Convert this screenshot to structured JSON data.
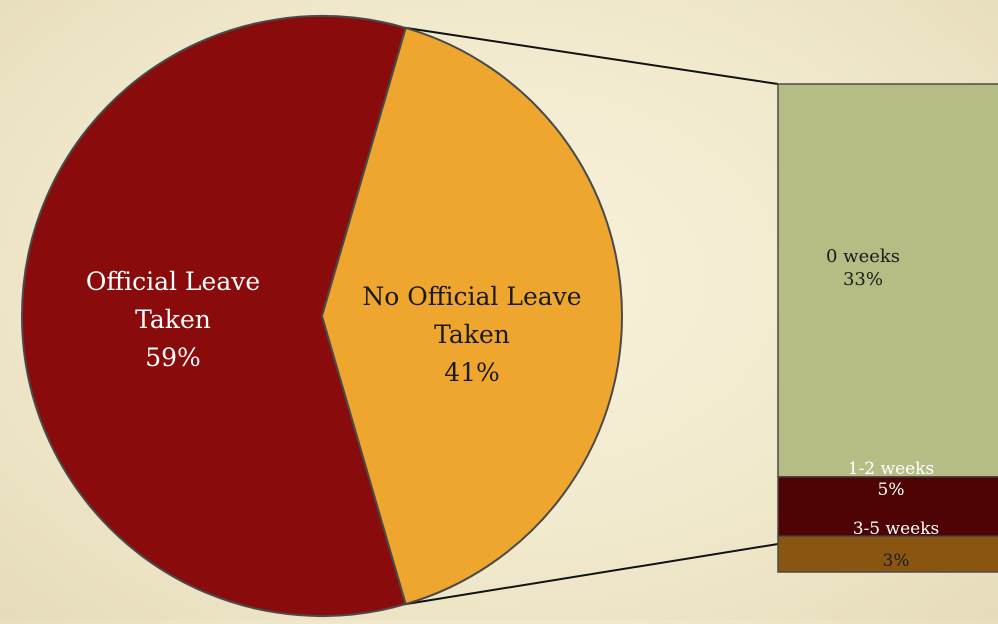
{
  "chart_data": {
    "type": "bar-of-pie",
    "pie": {
      "slices": [
        {
          "label": [
            "Official Leave",
            "Taken"
          ],
          "percent_label": "59%",
          "value": 59,
          "color": "#8a0b0b"
        },
        {
          "label": [
            "No Official Leave",
            "Taken"
          ],
          "percent_label": "41%",
          "value": 41,
          "color": "#efa62e"
        }
      ]
    },
    "breakdown": {
      "source_slice": "No Official Leave Taken",
      "segments": [
        {
          "label": "0 weeks",
          "percent_label": "33%",
          "value": 33,
          "color": "#b5bd85"
        },
        {
          "label": "1-2 weeks",
          "percent_label": "5%",
          "value": 5,
          "color": "#4e0404"
        },
        {
          "label": "3-5 weeks",
          "percent_label": "3%",
          "value": 3,
          "color": "#8a5510"
        }
      ]
    }
  }
}
